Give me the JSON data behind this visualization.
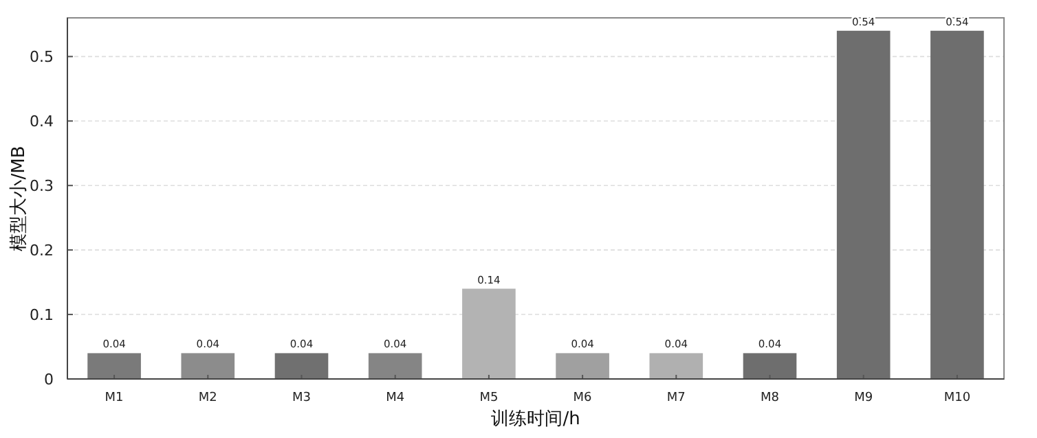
{
  "chart_data": {
    "type": "bar",
    "xlabel": "训练时间/h",
    "ylabel": "模型大小/MB",
    "categories": [
      "M1",
      "M2",
      "M3",
      "M4",
      "M5",
      "M6",
      "M7",
      "M8",
      "M9",
      "M10"
    ],
    "values": [
      0.04,
      0.04,
      0.04,
      0.04,
      0.14,
      0.04,
      0.04,
      0.04,
      0.54,
      0.54
    ],
    "colors": [
      "#7a7a7a",
      "#8c8c8c",
      "#707070",
      "#858585",
      "#b3b3b3",
      "#a0a0a0",
      "#b0b0b0",
      "#6e6e6e",
      "#6e6e6e",
      "#6e6e6e"
    ],
    "ylim": [
      0,
      0.56
    ],
    "yticks": [
      0,
      0.1,
      0.2,
      0.3,
      0.4,
      0.5
    ],
    "grid": "y",
    "data_labels": true
  }
}
